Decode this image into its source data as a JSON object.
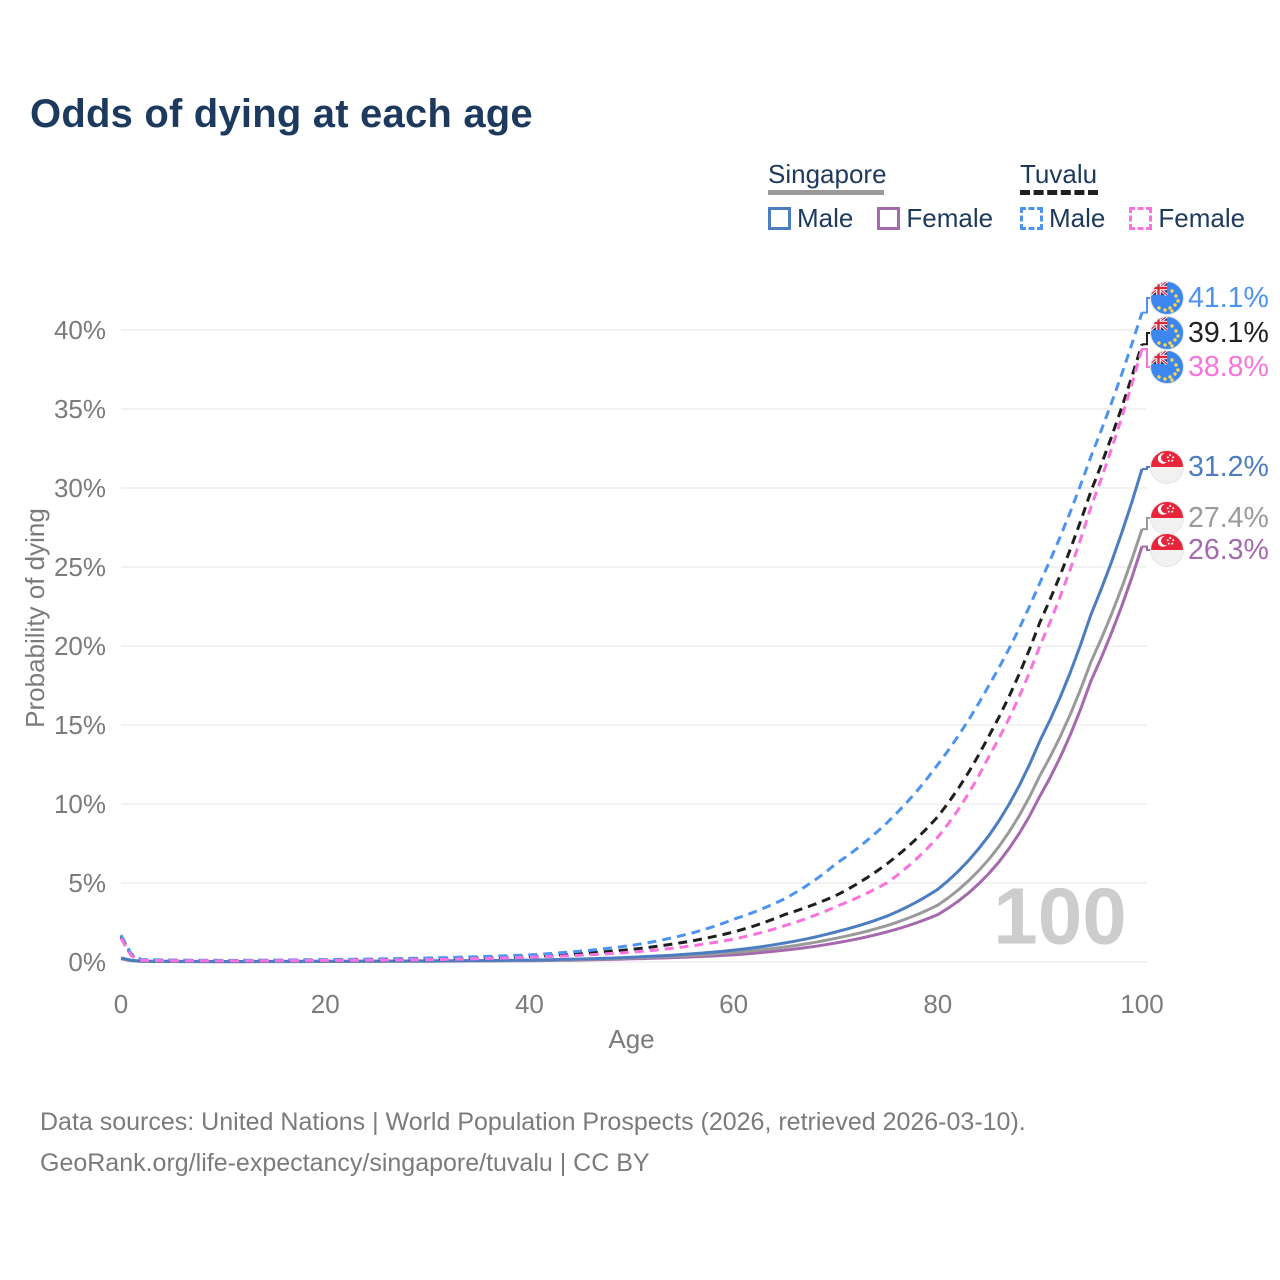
{
  "header": {
    "title": "Odds of dying at each age"
  },
  "legend": {
    "groups": [
      {
        "name": "Singapore",
        "line_style": "solid",
        "line_color": "#9a9a9a",
        "items": [
          {
            "label": "Male",
            "color": "#4b7dc0",
            "dashed": false
          },
          {
            "label": "Female",
            "color": "#a569ad",
            "dashed": false
          }
        ]
      },
      {
        "name": "Tuvalu",
        "line_style": "dashed",
        "line_color": "#1f1f1f",
        "items": [
          {
            "label": "Male",
            "color": "#4d93f2",
            "dashed": true
          },
          {
            "label": "Female",
            "color": "#f973de",
            "dashed": true
          }
        ]
      }
    ]
  },
  "chart_data": {
    "type": "line",
    "title": "Odds of dying at each age",
    "xlabel": "Age",
    "ylabel": "Probability of dying",
    "x_ticks": [
      0,
      20,
      40,
      60,
      80,
      100
    ],
    "y_tick_labels": [
      "0%",
      "5%",
      "10%",
      "15%",
      "20%",
      "25%",
      "30%",
      "35%",
      "40%"
    ],
    "xlim": [
      0,
      100
    ],
    "ylim": [
      0,
      43
    ],
    "grid": "horizontal",
    "legend_position": "top-right",
    "watermark": "100",
    "ages": [
      0,
      2,
      10,
      20,
      30,
      40,
      50,
      60,
      65,
      70,
      75,
      80,
      85,
      90,
      95,
      100
    ],
    "series": [
      {
        "name": "Tuvalu Male",
        "country": "Tuvalu",
        "sex": "Male",
        "flag": "tuvalu",
        "color": "#4d93f2",
        "dash": true,
        "end_label": "41.1%",
        "values": [
          1.7,
          0.15,
          0.1,
          0.15,
          0.25,
          0.45,
          1.05,
          2.7,
          4.0,
          6.2,
          8.8,
          12.5,
          17.5,
          24.0,
          32.0,
          41.1
        ]
      },
      {
        "name": "Tuvalu Total",
        "country": "Tuvalu",
        "sex": "Both",
        "flag": "tuvalu",
        "color": "#1f1f1f",
        "dash": true,
        "end_label": "39.1%",
        "values": [
          1.6,
          0.12,
          0.08,
          0.12,
          0.2,
          0.35,
          0.8,
          1.9,
          3.0,
          4.2,
          6.2,
          9.2,
          14.3,
          21.5,
          29.8,
          39.1
        ]
      },
      {
        "name": "Tuvalu Female",
        "country": "Tuvalu",
        "sex": "Female",
        "flag": "tuvalu",
        "color": "#f973de",
        "dash": true,
        "end_label": "38.8%",
        "values": [
          1.5,
          0.1,
          0.07,
          0.1,
          0.15,
          0.3,
          0.62,
          1.45,
          2.3,
          3.5,
          5.0,
          7.9,
          13.0,
          20.0,
          28.8,
          38.8
        ]
      },
      {
        "name": "Singapore Male",
        "country": "Singapore",
        "sex": "Male",
        "flag": "singapore",
        "color": "#4b7dc0",
        "dash": false,
        "end_label": "31.2%",
        "values": [
          0.25,
          0.05,
          0.03,
          0.05,
          0.07,
          0.12,
          0.3,
          0.75,
          1.2,
          1.9,
          2.9,
          4.6,
          8.0,
          14.0,
          22.0,
          31.2
        ]
      },
      {
        "name": "Singapore Total",
        "country": "Singapore",
        "sex": "Both",
        "flag": "singapore",
        "color": "#9a9a9a",
        "dash": false,
        "end_label": "27.4%",
        "values": [
          0.2,
          0.04,
          0.03,
          0.04,
          0.06,
          0.1,
          0.25,
          0.6,
          0.95,
          1.5,
          2.3,
          3.6,
          6.5,
          11.8,
          19.0,
          27.4
        ]
      },
      {
        "name": "Singapore Female",
        "country": "Singapore",
        "sex": "Female",
        "flag": "singapore",
        "color": "#a569ad",
        "dash": false,
        "end_label": "26.3%",
        "values": [
          0.2,
          0.04,
          0.02,
          0.03,
          0.05,
          0.08,
          0.2,
          0.45,
          0.75,
          1.2,
          1.9,
          3.0,
          5.6,
          10.5,
          17.8,
          26.3
        ]
      }
    ]
  },
  "footer": {
    "line1": "Data sources: United Nations | World Population Prospects (2026, retrieved 2026-03-10).",
    "line2": "GeoRank.org/life-expectancy/singapore/tuvalu | CC BY"
  }
}
